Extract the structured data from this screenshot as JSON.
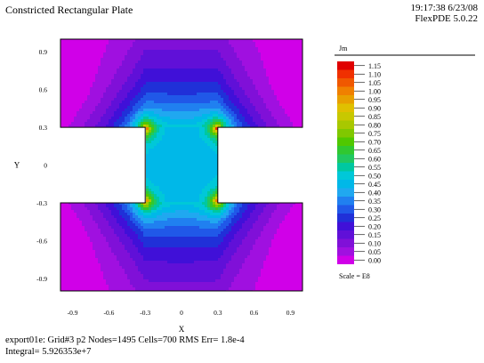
{
  "window": {
    "title": "Constricted Rectangular Plate",
    "timestamp": "19:17:38 6/23/08",
    "product": "FlexPDE 5.0.22",
    "status_line": "export01e:  Grid#3  p2  Nodes=1495 Cells=700 RMS Err= 1.8e-4",
    "integral_line": "Integral=  5.926353e+7"
  },
  "chart_data": {
    "type": "heatmap",
    "title": "Constricted Rectangular Plate",
    "xlabel": "X",
    "ylabel": "Y",
    "xlim": [
      -1.05,
      1.05
    ],
    "ylim": [
      -1.05,
      1.05
    ],
    "x_ticks": [
      "-0.9",
      "-0.6",
      "-0.3",
      "0",
      "0.3",
      "0.6",
      "0.9"
    ],
    "y_ticks": [
      "0.9",
      "0.6",
      "0.3",
      "0",
      "-0.3",
      "-0.6",
      "-0.9"
    ],
    "x_tick_values": [
      -0.9,
      -0.6,
      -0.3,
      0,
      0.3,
      0.6,
      0.9
    ],
    "y_tick_values": [
      0.9,
      0.6,
      0.3,
      0,
      -0.3,
      -0.6,
      -0.9
    ],
    "domain_outline": [
      [
        -1.0,
        -1.0
      ],
      [
        1.0,
        -1.0
      ],
      [
        1.0,
        -0.3
      ],
      [
        0.3,
        -0.3
      ],
      [
        0.3,
        0.3
      ],
      [
        1.0,
        0.3
      ],
      [
        1.0,
        1.0
      ],
      [
        -1.0,
        1.0
      ],
      [
        -1.0,
        0.3
      ],
      [
        -0.3,
        0.3
      ],
      [
        -0.3,
        -0.3
      ],
      [
        -1.0,
        -0.3
      ]
    ],
    "legend": {
      "variable": "Jm",
      "scale": "Scale = E8",
      "levels": [
        "1.15",
        "1.10",
        "1.05",
        "1.00",
        "0.95",
        "0.90",
        "0.85",
        "0.80",
        "0.75",
        "0.70",
        "0.65",
        "0.60",
        "0.55",
        "0.50",
        "0.45",
        "0.40",
        "0.35",
        "0.30",
        "0.25",
        "0.20",
        "0.15",
        "0.10",
        "0.05",
        "0.00"
      ],
      "colors": [
        "#e00000",
        "#f03000",
        "#f05800",
        "#f08000",
        "#e8a000",
        "#e0c000",
        "#c8c800",
        "#a8c800",
        "#80c800",
        "#50c800",
        "#30c830",
        "#20c860",
        "#00c8a0",
        "#00c8d8",
        "#00b8e8",
        "#20a8f0",
        "#2080f0",
        "#2058e8",
        "#2030d8",
        "#4010d8",
        "#6010d8",
        "#8010d8",
        "#a010e0",
        "#d000e8"
      ]
    },
    "field_model": "Jm values sampled over the plate: constriction neck carries ~0.45-0.50, re-entrant corners peak near 0.80-1.15, outer far corners drop toward 0.00-0.10"
  }
}
